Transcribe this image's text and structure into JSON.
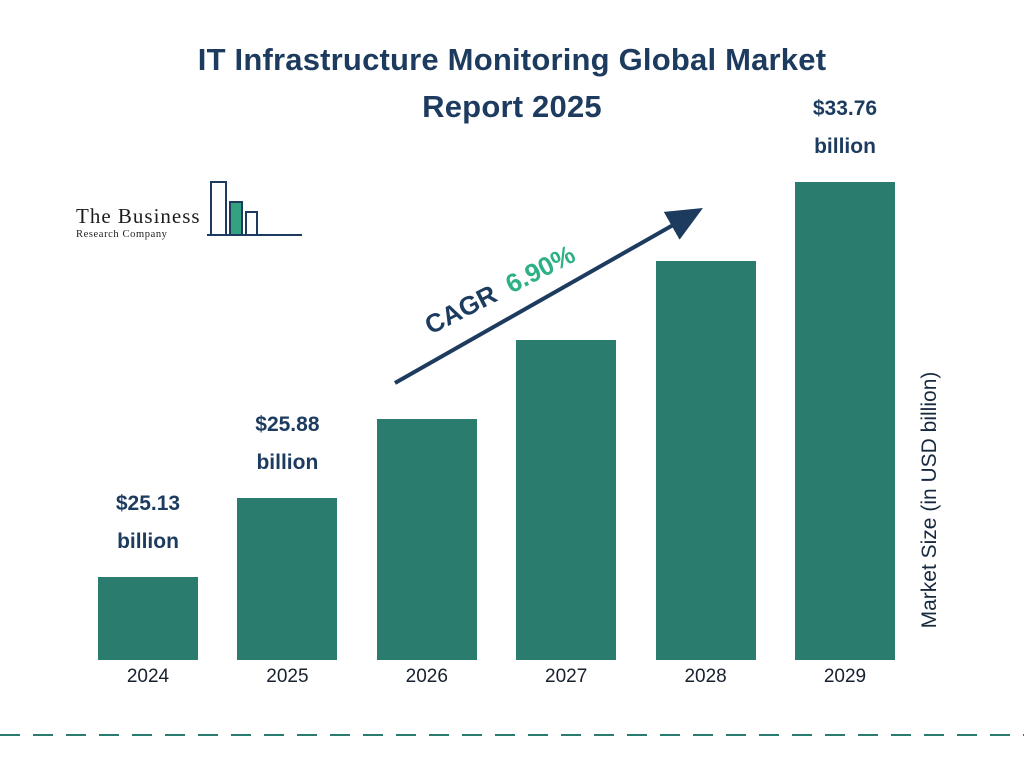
{
  "title": {
    "line1": "IT Infrastructure Monitoring Global Market",
    "line2": "Report 2025"
  },
  "logo": {
    "line1": "The Business",
    "line2": "Research Company"
  },
  "cagr": {
    "label": "CAGR",
    "value": "6.90%"
  },
  "y_axis_label": "Market Size (in USD billion)",
  "colors": {
    "bar": "#2a7d6e",
    "navy": "#1c3b5e",
    "accent_green": "#2eb086",
    "dashed_line": "#2a7d6e",
    "logo_green": "#35a183"
  },
  "chart_data": {
    "type": "bar",
    "title": "IT Infrastructure Monitoring Global Market Report 2025",
    "categories": [
      "2024",
      "2025",
      "2026",
      "2027",
      "2028",
      "2029"
    ],
    "values": [
      25.13,
      25.88,
      27.67,
      29.57,
      31.61,
      33.76
    ],
    "values_note": "2026-2028 estimated from 6.90% CAGR; only 2024, 2025 and 2029 are labeled on the chart",
    "unit": "USD billion",
    "xlabel": "",
    "ylabel": "Market Size (in USD billion)",
    "cagr": "6.90%",
    "legend": "none",
    "grid": false,
    "data_labels": [
      {
        "value": "$25.13",
        "unit": "billion"
      },
      {
        "value": "$25.88",
        "unit": "billion"
      },
      null,
      null,
      null,
      {
        "value": "$33.76",
        "unit": "billion"
      }
    ],
    "style_note": "bar heights drawn in equal visual steps, not value-proportional"
  }
}
